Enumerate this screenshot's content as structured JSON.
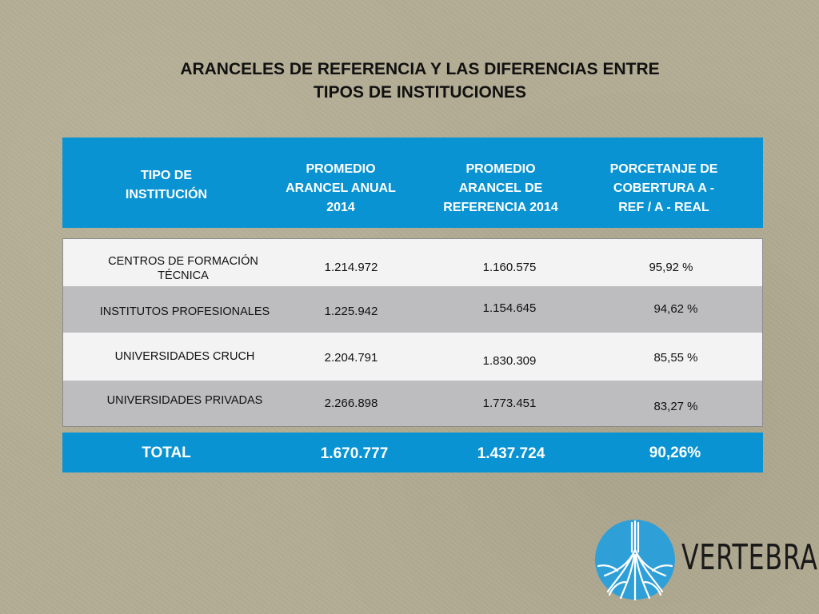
{
  "title": {
    "line1": "ARANCELES DE REFERENCIA Y LAS DIFERENCIAS ENTRE",
    "line2": "TIPOS DE INSTITUCIONES"
  },
  "table": {
    "headers": [
      [
        "TIPO DE",
        "INSTITUCIÓN"
      ],
      [
        "PROMEDIO",
        "ARANCEL ANUAL",
        "2014"
      ],
      [
        "PROMEDIO",
        "ARANCEL DE",
        "REFERENCIA 2014"
      ],
      [
        "PORCETANJE DE",
        "COBERTURA A -",
        "REF / A - REAL"
      ]
    ],
    "rows": [
      {
        "institution": [
          "CENTROS DE FORMACIÓN",
          "TÉCNICA"
        ],
        "promedio_anual": "1.214.972",
        "promedio_referencia": "1.160.575",
        "cobertura": "95,92 %"
      },
      {
        "institution": [
          "INSTITUTOS PROFESIONALES"
        ],
        "promedio_anual": "1.225.942",
        "promedio_referencia": "1.154.645",
        "cobertura": "94,62 %"
      },
      {
        "institution": [
          "UNIVERSIDADES CRUCH"
        ],
        "promedio_anual": "2.204.791",
        "promedio_referencia": "1.830.309",
        "cobertura": "85,55 %"
      },
      {
        "institution": [
          "UNIVERSIDADES PRIVADAS"
        ],
        "promedio_anual": "2.266.898",
        "promedio_referencia": "1.773.451",
        "cobertura": "83,27 %"
      }
    ],
    "total": {
      "label": "TOTAL",
      "promedio_anual": "1.670.777",
      "promedio_referencia": "1.437.724",
      "cobertura": "90,26%"
    }
  },
  "logo": {
    "text": "VERTEBRAL",
    "icon": "tree-roots-icon",
    "color": "#2f9fd8"
  },
  "colors": {
    "header_band": "#0a93d2",
    "alt_row": "#bdbdc0",
    "row": "#f3f3f3"
  }
}
